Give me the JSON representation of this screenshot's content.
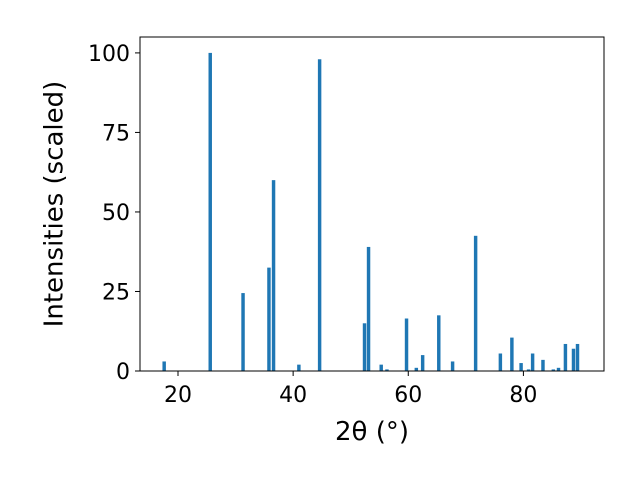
{
  "chart_data": {
    "type": "bar",
    "xlabel": "2θ (°)",
    "ylabel": "Intensities (scaled)",
    "xlim": [
      13.4,
      94.0
    ],
    "ylim": [
      0,
      105
    ],
    "xticks": [
      20,
      40,
      60,
      80
    ],
    "yticks": [
      0,
      25,
      50,
      75,
      100
    ],
    "bar_color": "#1f77b4",
    "bar_width": 0.6,
    "grid": false,
    "legend": "none",
    "x": [
      17.6,
      25.6,
      31.3,
      35.8,
      36.6,
      41.0,
      44.6,
      52.4,
      53.1,
      55.3,
      56.3,
      59.7,
      61.4,
      62.5,
      65.3,
      67.7,
      71.7,
      76.0,
      78.0,
      79.6,
      80.9,
      81.6,
      83.4,
      85.2,
      86.1,
      87.3,
      88.7,
      89.4
    ],
    "values": [
      3,
      100,
      24.5,
      32.5,
      60,
      2,
      98,
      15,
      39,
      2,
      0.5,
      16.5,
      1,
      5,
      17.5,
      3,
      42.5,
      5.5,
      10.5,
      2.5,
      0.5,
      5.5,
      3.5,
      0.5,
      1,
      8.5,
      7,
      8.5
    ]
  }
}
